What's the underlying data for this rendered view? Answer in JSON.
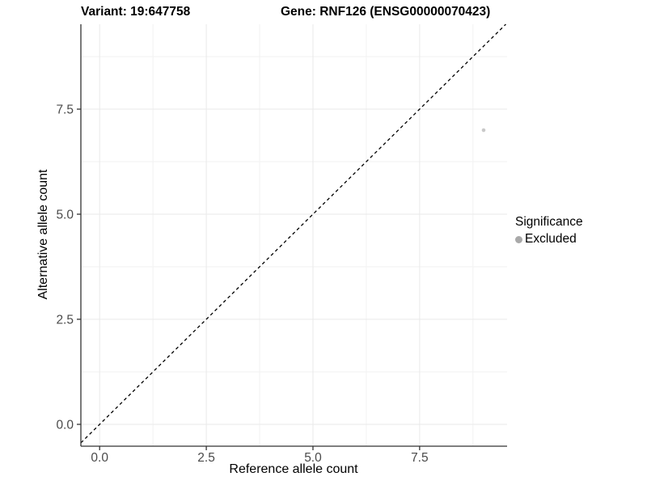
{
  "chart_data": {
    "type": "scatter",
    "title_left": "Variant: 19:647758",
    "title_right": "Gene: RNF126 (ENSG00000070423)",
    "xlabel": "Reference allele count",
    "ylabel": "Alternative allele count",
    "xlim": [
      -0.44,
      9.55
    ],
    "ylim": [
      -0.52,
      9.52
    ],
    "x_ticks": [
      0.0,
      2.5,
      5.0,
      7.5
    ],
    "y_ticks": [
      0.0,
      2.5,
      5.0,
      7.5
    ],
    "x_tick_labels": [
      "0.0",
      "2.5",
      "5.0",
      "7.5"
    ],
    "y_tick_labels": [
      "0.0",
      "2.5",
      "5.0",
      "7.5"
    ],
    "x_minor_breaks": [
      1.25,
      3.75,
      6.25,
      8.75
    ],
    "y_minor_breaks": [
      1.25,
      3.75,
      6.25,
      8.75
    ],
    "grid": true,
    "series": [
      {
        "name": "Excluded",
        "points": [
          {
            "x": 9,
            "y": 7
          }
        ],
        "color": "#c9c9c9",
        "marker_radius": 2.3
      }
    ],
    "identity_line": {
      "slope": 1,
      "intercept": 0,
      "style": "dashed",
      "color": "#000000"
    },
    "legend": {
      "title": "Significance",
      "position": "right",
      "entries": [
        {
          "label": "Excluded",
          "color": "#a9a9a9",
          "marker": "circle"
        }
      ]
    },
    "colors": {
      "background": "#ffffff",
      "grid_major": "#e9e9e9",
      "grid_minor": "#f2f2f2",
      "axis_line": "#333333",
      "tick_label": "#4a4a4a"
    }
  }
}
